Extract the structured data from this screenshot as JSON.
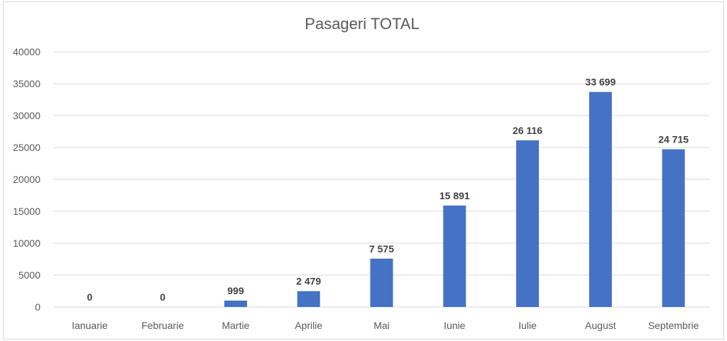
{
  "chart_data": {
    "type": "bar",
    "title": "Pasageri TOTAL",
    "xlabel": "",
    "ylabel": "",
    "ylim": [
      0,
      40000
    ],
    "yticks": [
      0,
      5000,
      10000,
      15000,
      20000,
      25000,
      30000,
      35000,
      40000
    ],
    "grid": true,
    "legend": "none",
    "bar_color": "#4472C4",
    "categories": [
      "Ianuarie",
      "Februarie",
      "Martie",
      "Aprilie",
      "Mai",
      "Iunie",
      "Iulie",
      "August",
      "Septembrie"
    ],
    "values": [
      0,
      0,
      999,
      2479,
      7575,
      15891,
      26116,
      33699,
      24715
    ],
    "data_labels": [
      "0",
      "0",
      "999",
      "2 479",
      "7 575",
      "15 891",
      "26 116",
      "33 699",
      "24 715"
    ]
  }
}
